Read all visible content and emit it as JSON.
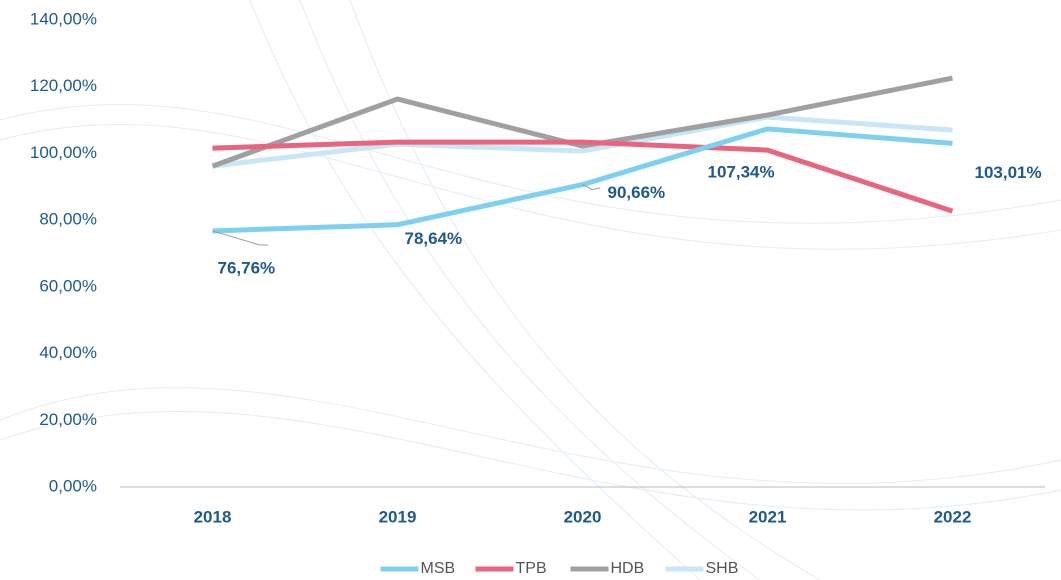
{
  "chart_data": {
    "type": "line",
    "categories": [
      "2018",
      "2019",
      "2020",
      "2021",
      "2022"
    ],
    "series": [
      {
        "name": "MSB",
        "color": "#7dd0f0",
        "values": [
          76.76,
          78.64,
          90.66,
          107.34,
          103.01
        ],
        "value_labels": [
          "76,76%",
          "78,64%",
          "90,66%",
          "107,34%",
          "103,01%"
        ]
      },
      {
        "name": "TPB",
        "color": "#e8647f",
        "values": [
          101.6,
          103.4,
          103.4,
          101.0,
          82.7
        ]
      },
      {
        "name": "HDB",
        "color": "#a0a0a0",
        "values": [
          96.2,
          116.3,
          102.2,
          111.5,
          122.6
        ]
      },
      {
        "name": "SHB",
        "color": "#c8e6f5",
        "values": [
          96.2,
          102.8,
          100.7,
          110.9,
          107.0
        ]
      }
    ],
    "ylim": [
      0,
      140
    ],
    "yticks": [
      {
        "value": 0,
        "label": "0,00%"
      },
      {
        "value": 20,
        "label": "20,00%"
      },
      {
        "value": 40,
        "label": "40,00%"
      },
      {
        "value": 60,
        "label": "60,00%"
      },
      {
        "value": 80,
        "label": "80,00%"
      },
      {
        "value": 100,
        "label": "100,00%"
      },
      {
        "value": 120,
        "label": "120,00%"
      },
      {
        "value": 140,
        "label": "140,00%"
      }
    ],
    "grid": false
  }
}
